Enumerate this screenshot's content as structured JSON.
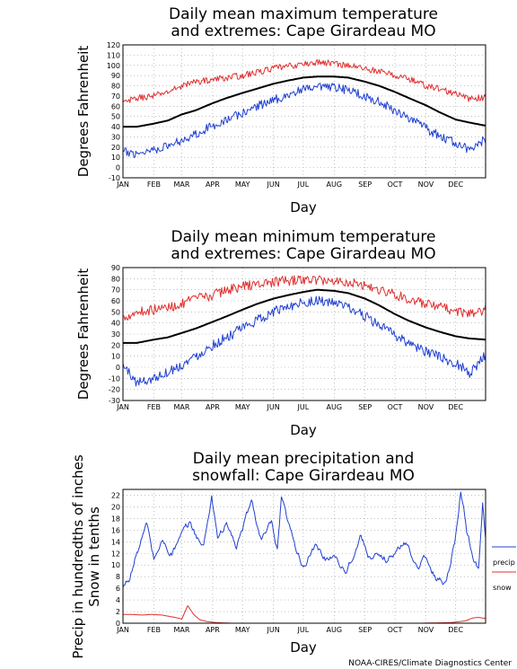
{
  "footer": {
    "credit": "NOAA-CIRES/Climate Diagnostics Center"
  },
  "colors": {
    "mean": "#000000",
    "max_extreme": "#e03030",
    "min_extreme": "#2040d0",
    "precip": "#2040d0",
    "snow": "#e03030",
    "grid": "#999999"
  },
  "chart_data": [
    {
      "type": "line",
      "title": [
        "Daily mean maximum temperature",
        "and extremes: Cape Girardeau MO"
      ],
      "xlabel": "Day",
      "ylabel": "Degrees Fahrenheit",
      "ylim": [
        -10,
        120
      ],
      "yticks": [
        "-10",
        "0",
        "10",
        "20",
        "30",
        "40",
        "50",
        "60",
        "70",
        "80",
        "90",
        "100",
        "110",
        "120"
      ],
      "categories": [
        "JAN",
        "FEB",
        "MAR",
        "APR",
        "MAY",
        "JUN",
        "JUL",
        "AUG",
        "SEP",
        "OCT",
        "NOV",
        "DEC"
      ],
      "grid": true,
      "series": [
        {
          "key": "mean",
          "x": [
            1,
            15,
            32,
            46,
            60,
            74,
            91,
            105,
            121,
            135,
            152,
            166,
            182,
            196,
            213,
            227,
            244,
            258,
            274,
            288,
            305,
            319,
            335,
            349,
            365
          ],
          "values": [
            40,
            40,
            43,
            46,
            52,
            56,
            63,
            68,
            73,
            77,
            82,
            85,
            88,
            89,
            89,
            88,
            84,
            80,
            74,
            68,
            61,
            54,
            47,
            44,
            41
          ]
        },
        {
          "key": "max_extreme",
          "x": [
            1,
            15,
            32,
            46,
            60,
            74,
            91,
            105,
            121,
            135,
            152,
            166,
            182,
            196,
            213,
            227,
            244,
            258,
            274,
            288,
            305,
            319,
            335,
            349,
            365
          ],
          "values": [
            63,
            68,
            70,
            74,
            80,
            84,
            86,
            88,
            90,
            93,
            97,
            99,
            101,
            103,
            102,
            100,
            97,
            94,
            90,
            87,
            80,
            77,
            72,
            67,
            69
          ]
        },
        {
          "key": "min_extreme",
          "x": [
            1,
            15,
            32,
            46,
            60,
            74,
            91,
            105,
            121,
            135,
            152,
            166,
            182,
            196,
            213,
            227,
            244,
            258,
            274,
            288,
            305,
            319,
            335,
            349,
            365
          ],
          "values": [
            15,
            14,
            18,
            21,
            27,
            33,
            41,
            47,
            53,
            60,
            66,
            71,
            76,
            78,
            78,
            76,
            70,
            64,
            56,
            49,
            38,
            31,
            24,
            17,
            28
          ]
        }
      ]
    },
    {
      "type": "line",
      "title": [
        "Daily mean minimum temperature",
        "and extremes: Cape Girardeau MO"
      ],
      "xlabel": "Day",
      "ylabel": "Degrees Fahrenheit",
      "ylim": [
        -30,
        90
      ],
      "yticks": [
        "-30",
        "-20",
        "-10",
        "0",
        "10",
        "20",
        "30",
        "40",
        "50",
        "60",
        "70",
        "80",
        "90"
      ],
      "categories": [
        "JAN",
        "FEB",
        "MAR",
        "APR",
        "MAY",
        "JUN",
        "JUL",
        "AUG",
        "SEP",
        "OCT",
        "NOV",
        "DEC"
      ],
      "grid": true,
      "series": [
        {
          "key": "mean",
          "x": [
            1,
            15,
            32,
            46,
            60,
            74,
            91,
            105,
            121,
            135,
            152,
            166,
            182,
            196,
            213,
            227,
            244,
            258,
            274,
            288,
            305,
            319,
            335,
            349,
            365
          ],
          "values": [
            22,
            22,
            25,
            27,
            31,
            35,
            41,
            46,
            52,
            57,
            62,
            65,
            68,
            70,
            69,
            67,
            62,
            56,
            48,
            42,
            36,
            32,
            28,
            26,
            25
          ]
        },
        {
          "key": "max_extreme",
          "x": [
            1,
            15,
            32,
            46,
            60,
            74,
            91,
            105,
            121,
            135,
            152,
            166,
            182,
            196,
            213,
            227,
            244,
            258,
            274,
            288,
            305,
            319,
            335,
            349,
            365
          ],
          "values": [
            45,
            50,
            52,
            54,
            57,
            62,
            65,
            70,
            73,
            75,
            77,
            78,
            79,
            79,
            78,
            77,
            74,
            70,
            66,
            61,
            57,
            54,
            51,
            48,
            52
          ]
        },
        {
          "key": "min_extreme",
          "x": [
            1,
            15,
            32,
            46,
            60,
            74,
            91,
            105,
            121,
            135,
            152,
            166,
            182,
            196,
            213,
            227,
            244,
            258,
            274,
            288,
            305,
            319,
            335,
            349,
            365
          ],
          "values": [
            2,
            -14,
            -10,
            -4,
            2,
            10,
            20,
            27,
            35,
            42,
            50,
            55,
            59,
            60,
            58,
            54,
            46,
            38,
            29,
            22,
            14,
            9,
            4,
            -5,
            11
          ]
        }
      ]
    },
    {
      "type": "line",
      "title": [
        "Daily mean precipitation and",
        "snowfall: Cape Girardeau MO"
      ],
      "xlabel": "Day",
      "ylabel": [
        "Precip in hundredths of inches",
        "Snow in tenths"
      ],
      "ylim": [
        0,
        23
      ],
      "yticks": [
        "0",
        "2",
        "4",
        "6",
        "8",
        "10",
        "12",
        "14",
        "16",
        "18",
        "20",
        "22"
      ],
      "categories": [
        "JAN",
        "FEB",
        "MAR",
        "APR",
        "MAY",
        "JUN",
        "JUL",
        "AUG",
        "SEP",
        "OCT",
        "NOV",
        "DEC"
      ],
      "grid": true,
      "legend": [
        "precip",
        "snow"
      ],
      "legend_position": "right",
      "series": [
        {
          "key": "precip",
          "name": "precip",
          "x": [
            1,
            8,
            15,
            25,
            32,
            40,
            50,
            60,
            68,
            75,
            82,
            90,
            96,
            105,
            115,
            121,
            130,
            140,
            150,
            156,
            160,
            170,
            182,
            195,
            205,
            213,
            225,
            240,
            250,
            265,
            274,
            285,
            295,
            305,
            315,
            325,
            334,
            340,
            346,
            352,
            358,
            362,
            365
          ],
          "values": [
            6,
            8,
            12,
            17,
            11,
            14,
            12,
            15,
            17,
            15,
            13,
            22,
            15,
            17,
            13,
            16,
            21,
            14,
            17,
            12,
            21,
            15,
            10,
            13,
            11,
            12,
            9,
            15,
            11,
            11,
            12,
            14,
            10,
            11,
            8,
            7,
            14,
            23,
            16,
            12,
            9,
            21,
            14
          ]
        },
        {
          "key": "snow",
          "name": "snow",
          "x": [
            1,
            10,
            20,
            30,
            40,
            50,
            56,
            60,
            66,
            72,
            78,
            85,
            95,
            110,
            200,
            300,
            330,
            345,
            352,
            358,
            365
          ],
          "values": [
            1.5,
            1.5,
            1.4,
            1.5,
            1.4,
            1.1,
            0.9,
            0.7,
            3,
            1.5,
            0.6,
            0.3,
            0.1,
            0,
            0,
            0,
            0.1,
            0.4,
            0.9,
            1,
            0.8
          ]
        }
      ]
    }
  ]
}
